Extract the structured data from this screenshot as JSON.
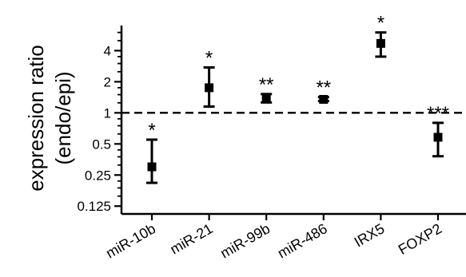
{
  "chart_data": {
    "type": "scatter",
    "title": "",
    "xlabel": "",
    "ylabel": "expression ratio",
    "ylabel_line2": "(endo/epi)",
    "y_scale": "log2",
    "ylim": [
      0.105,
      7.0
    ],
    "yticks": [
      0.125,
      0.25,
      0.5,
      1,
      2,
      4
    ],
    "ytick_labels": [
      "0.125",
      "0.25",
      "0.5",
      "1",
      "2",
      "4"
    ],
    "reference_line": 1,
    "grid": false,
    "legend": "none",
    "color": "#000000",
    "categories": [
      "miR-10b",
      "miR-21",
      "miR-99b",
      "miR-486",
      "IRX5",
      "FOXP2"
    ],
    "points": [
      {
        "category": "miR-10b",
        "value": 0.3,
        "lower": 0.21,
        "upper": 0.55,
        "significance": "*"
      },
      {
        "category": "miR-21",
        "value": 1.75,
        "lower": 1.15,
        "upper": 2.75,
        "significance": "*"
      },
      {
        "category": "miR-99b",
        "value": 1.4,
        "lower": 1.26,
        "upper": 1.52,
        "significance": "**"
      },
      {
        "category": "miR-486",
        "value": 1.35,
        "lower": 1.3,
        "upper": 1.42,
        "significance": "**"
      },
      {
        "category": "IRX5",
        "value": 4.7,
        "lower": 3.5,
        "upper": 6.0,
        "significance": "*"
      },
      {
        "category": "FOXP2",
        "value": 0.58,
        "lower": 0.38,
        "upper": 0.8,
        "significance": "***"
      }
    ]
  }
}
